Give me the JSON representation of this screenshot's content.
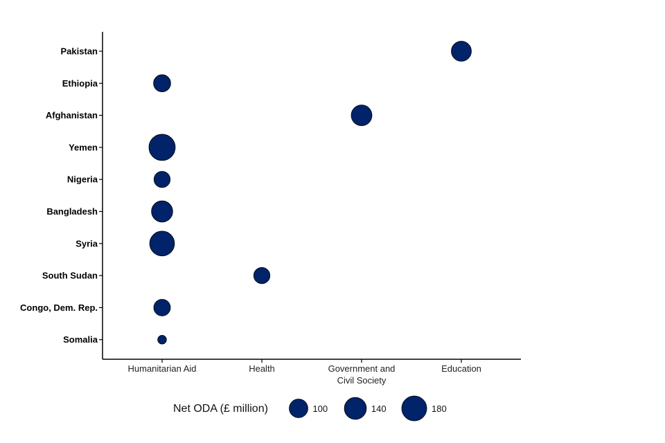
{
  "chart_data": {
    "type": "bubble",
    "categories_x": [
      "Humanitarian Aid",
      "Health",
      "Government and Civil Society",
      "Education"
    ],
    "categories_x_display": [
      [
        "Humanitarian Aid"
      ],
      [
        "Health"
      ],
      [
        "Government and",
        "Civil Society"
      ],
      [
        "Education"
      ]
    ],
    "categories_y": [
      "Pakistan",
      "Ethiopia",
      "Afghanistan",
      "Yemen",
      "Nigeria",
      "Bangladesh",
      "Syria",
      "South Sudan",
      "Congo, Dem. Rep.",
      "Somalia"
    ],
    "points": [
      {
        "country": "Pakistan",
        "sector": "Education",
        "value": 116
      },
      {
        "country": "Ethiopia",
        "sector": "Humanitarian Aid",
        "value": 85
      },
      {
        "country": "Afghanistan",
        "sector": "Government and Civil Society",
        "value": 124
      },
      {
        "country": "Yemen",
        "sector": "Humanitarian Aid",
        "value": 200
      },
      {
        "country": "Nigeria",
        "sector": "Humanitarian Aid",
        "value": 76
      },
      {
        "country": "Bangladesh",
        "sector": "Humanitarian Aid",
        "value": 130
      },
      {
        "country": "Syria",
        "sector": "Humanitarian Aid",
        "value": 178
      },
      {
        "country": "South Sudan",
        "sector": "Health",
        "value": 76
      },
      {
        "country": "Congo, Dem. Rep.",
        "sector": "Humanitarian Aid",
        "value": 80
      },
      {
        "country": "Somalia",
        "sector": "Humanitarian Aid",
        "value": 22
      }
    ],
    "legend": {
      "title": "Net ODA (£ million)",
      "values": [
        100,
        140,
        180
      ],
      "placement": "bottom"
    },
    "colors": {
      "bubble": "#00236a",
      "stroke": "#000000",
      "axis": "#000000"
    },
    "grid": false
  }
}
